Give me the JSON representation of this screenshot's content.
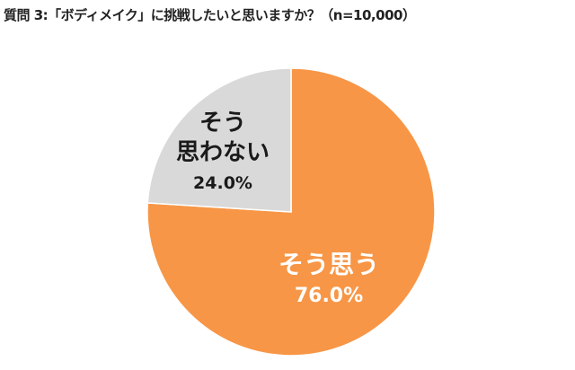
{
  "chart_data": {
    "type": "pie",
    "title": "質問 3:「ボディメイク」に挑戦したいと思いますか？（n=10,000）",
    "slices": [
      {
        "label": "そう思う",
        "value": 76.0,
        "value_label": "76.0%",
        "color": "#F79646"
      },
      {
        "label_lines": [
          "そう",
          "思わない"
        ],
        "value": 24.0,
        "value_label": "24.0%",
        "color": "#D9D9D9"
      }
    ],
    "start_angle_deg": 0,
    "direction": "clockwise",
    "legend": "none"
  }
}
